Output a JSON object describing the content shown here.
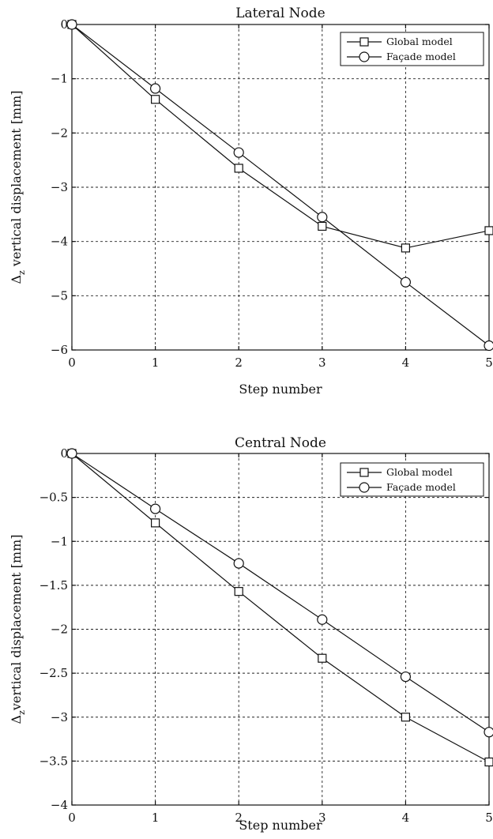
{
  "chart_data": [
    {
      "type": "line",
      "title": "Lateral Node",
      "xlabel": "Step number",
      "ylabel": "Δ",
      "ylabel_sub": "z",
      "ylabel_rest": " vertical displacement [mm]",
      "xlim": [
        0,
        5
      ],
      "ylim": [
        -6,
        0
      ],
      "xticks": [
        0,
        1,
        2,
        3,
        4,
        5
      ],
      "yticks": [
        0,
        -1,
        -2,
        -3,
        -4,
        -5,
        -6
      ],
      "ytick_labels": [
        "0",
        "−1",
        "−2",
        "−3",
        "−4",
        "−5",
        "−6"
      ],
      "grid": true,
      "legend": "top-right",
      "x": [
        0,
        1,
        2,
        3,
        4,
        5
      ],
      "series": [
        {
          "name": "Global model",
          "marker": "square",
          "values": [
            0,
            -1.38,
            -2.65,
            -3.72,
            -4.12,
            -3.8
          ]
        },
        {
          "name": "Façade model",
          "marker": "circle",
          "values": [
            0,
            -1.18,
            -2.36,
            -3.55,
            -4.75,
            -5.92
          ]
        }
      ]
    },
    {
      "type": "line",
      "title": "Central Node",
      "xlabel": "Step number",
      "ylabel": "Δ",
      "ylabel_sub": "z",
      "ylabel_rest": "vertical displacement [mm]",
      "xlim": [
        0,
        5
      ],
      "ylim": [
        -4,
        0
      ],
      "xticks": [
        0,
        1,
        2,
        3,
        4,
        5
      ],
      "yticks": [
        0,
        -0.5,
        -1,
        -1.5,
        -2,
        -2.5,
        -3,
        -3.5,
        -4
      ],
      "ytick_labels": [
        "0",
        "−0.5",
        "−1",
        "−1.5",
        "−2",
        "−2.5",
        "−3",
        "−3.5",
        "−4"
      ],
      "grid": true,
      "legend": "top-right",
      "x": [
        0,
        1,
        2,
        3,
        4,
        5
      ],
      "series": [
        {
          "name": "Global model",
          "marker": "square",
          "values": [
            0,
            -0.79,
            -1.57,
            -2.33,
            -3.0,
            -3.51
          ]
        },
        {
          "name": "Façade model",
          "marker": "circle",
          "values": [
            0,
            -0.63,
            -1.25,
            -1.89,
            -2.54,
            -3.17
          ]
        }
      ]
    }
  ]
}
